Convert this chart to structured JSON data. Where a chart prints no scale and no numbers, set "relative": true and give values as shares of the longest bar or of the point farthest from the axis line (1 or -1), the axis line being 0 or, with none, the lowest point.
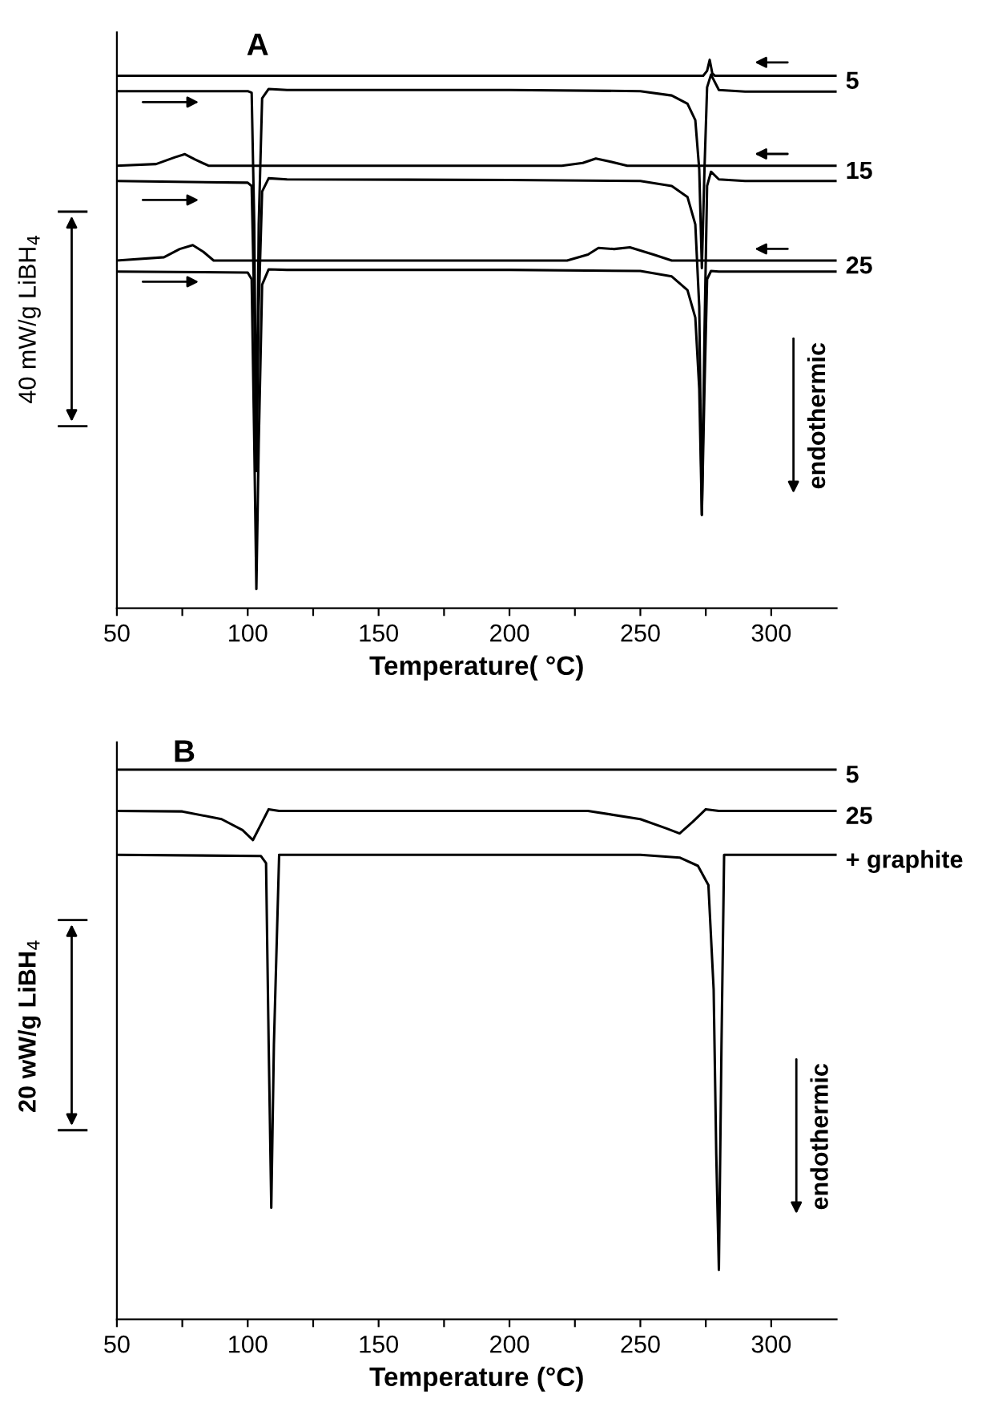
{
  "chart_data": [
    {
      "type": "line",
      "relative": true,
      "xlabel": "Temperature( °C)",
      "annotations": [
        "A",
        "40 mW/g LiBH$_{4}$",
        "endothermic"
      ],
      "xlim": [
        50,
        325
      ],
      "xticks": [
        50,
        {
          "value": 75,
          "label": null
        },
        100,
        {
          "value": 125,
          "label": null
        },
        150,
        {
          "value": 175,
          "label": null
        },
        200,
        {
          "value": 225,
          "label": null
        },
        250,
        {
          "value": 275,
          "label": null
        },
        300
      ],
      "tick_labels": "x",
      "grid": false,
      "legend": false,
      "series": [
        {
          "name": "5",
          "color": "#000000",
          "x": [
            50,
            274,
            275.5,
            276.5,
            277.5,
            278.5,
            325
          ],
          "values": [
            0.971,
            0.971,
            0.98,
            1.0,
            0.975,
            0.971,
            0.971
          ]
        },
        {
          "color": "#000000",
          "x": [
            50,
            100,
            101.5,
            102.5,
            103.3,
            104.2,
            105.5,
            108,
            115,
            200,
            250,
            262,
            268,
            271,
            272.5,
            273.5,
            274.5,
            275.5,
            277,
            280,
            290,
            325
          ],
          "values": [
            0.943,
            0.943,
            0.94,
            0.7,
            0.25,
            0.7,
            0.93,
            0.947,
            0.945,
            0.945,
            0.943,
            0.935,
            0.92,
            0.89,
            0.8,
            0.62,
            0.8,
            0.95,
            0.973,
            0.945,
            0.942,
            0.942
          ]
        },
        {
          "name": "15",
          "color": "#000000",
          "x": [
            50,
            65,
            72,
            76,
            80,
            85,
            220,
            228,
            233,
            238,
            245,
            325
          ],
          "values": [
            0.807,
            0.81,
            0.822,
            0.828,
            0.818,
            0.807,
            0.807,
            0.812,
            0.82,
            0.815,
            0.807,
            0.807
          ]
        },
        {
          "color": "#000000",
          "x": [
            50,
            100,
            101.5,
            102.5,
            103.3,
            104.2,
            105.5,
            108,
            115,
            200,
            250,
            262,
            268,
            271,
            272.5,
            273.5,
            274.5,
            275.5,
            277,
            280,
            290,
            325
          ],
          "values": [
            0.779,
            0.776,
            0.77,
            0.55,
            0.25,
            0.55,
            0.76,
            0.784,
            0.782,
            0.781,
            0.779,
            0.77,
            0.75,
            0.7,
            0.55,
            0.17,
            0.5,
            0.77,
            0.796,
            0.782,
            0.779,
            0.779
          ]
        },
        {
          "name": "25",
          "color": "#000000",
          "x": [
            50,
            68,
            74,
            79,
            83,
            87,
            222,
            230,
            234,
            240,
            246,
            255,
            262,
            325
          ],
          "values": [
            0.634,
            0.64,
            0.655,
            0.662,
            0.65,
            0.634,
            0.634,
            0.645,
            0.657,
            0.655,
            0.658,
            0.645,
            0.634,
            0.634
          ]
        },
        {
          "color": "#000000",
          "x": [
            50,
            100,
            101.5,
            102.5,
            103.3,
            104.2,
            105.5,
            108,
            115,
            200,
            250,
            262,
            268,
            271,
            272.5,
            273.5,
            274.5,
            275.5,
            277,
            280,
            290,
            325
          ],
          "values": [
            0.614,
            0.612,
            0.6,
            0.3,
            0.035,
            0.3,
            0.59,
            0.618,
            0.617,
            0.617,
            0.615,
            0.605,
            0.58,
            0.53,
            0.4,
            0.17,
            0.4,
            0.6,
            0.615,
            0.614,
            0.614,
            0.614
          ]
        }
      ]
    },
    {
      "type": "line",
      "relative": true,
      "xlabel": "Temperature (°C)",
      "annotations": [
        "B",
        "20 wW/g LiBH$_{4}$",
        "endothermic"
      ],
      "xlim": [
        50,
        325
      ],
      "xticks": [
        50,
        {
          "value": 75,
          "label": null
        },
        100,
        {
          "value": 125,
          "label": null
        },
        150,
        {
          "value": 175,
          "label": null
        },
        200,
        {
          "value": 225,
          "label": null
        },
        250,
        {
          "value": 275,
          "label": null
        },
        300
      ],
      "tick_labels": "x",
      "grid": false,
      "legend": false,
      "series": [
        {
          "name": "5",
          "color": "#000000",
          "x": [
            50,
            325
          ],
          "values": [
            1.0,
            1.0
          ]
        },
        {
          "name": "25",
          "color": "#000000",
          "x": [
            50,
            75,
            90,
            98,
            102,
            105,
            108,
            112,
            230,
            250,
            260,
            265,
            270,
            275,
            280,
            325
          ],
          "values": [
            0.925,
            0.924,
            0.91,
            0.89,
            0.872,
            0.9,
            0.928,
            0.925,
            0.925,
            0.91,
            0.893,
            0.884,
            0.905,
            0.928,
            0.925,
            0.925
          ]
        },
        {
          "name": "+ graphite",
          "color": "#000000",
          "x": [
            50,
            105,
            107,
            108,
            109,
            110,
            112,
            250,
            265,
            272,
            276,
            278,
            279,
            280,
            281,
            282,
            284,
            325
          ],
          "values": [
            0.845,
            0.843,
            0.83,
            0.5,
            0.203,
            0.5,
            0.845,
            0.845,
            0.84,
            0.825,
            0.79,
            0.6,
            0.3,
            0.09,
            0.5,
            0.845,
            0.845,
            0.845
          ]
        }
      ]
    }
  ]
}
